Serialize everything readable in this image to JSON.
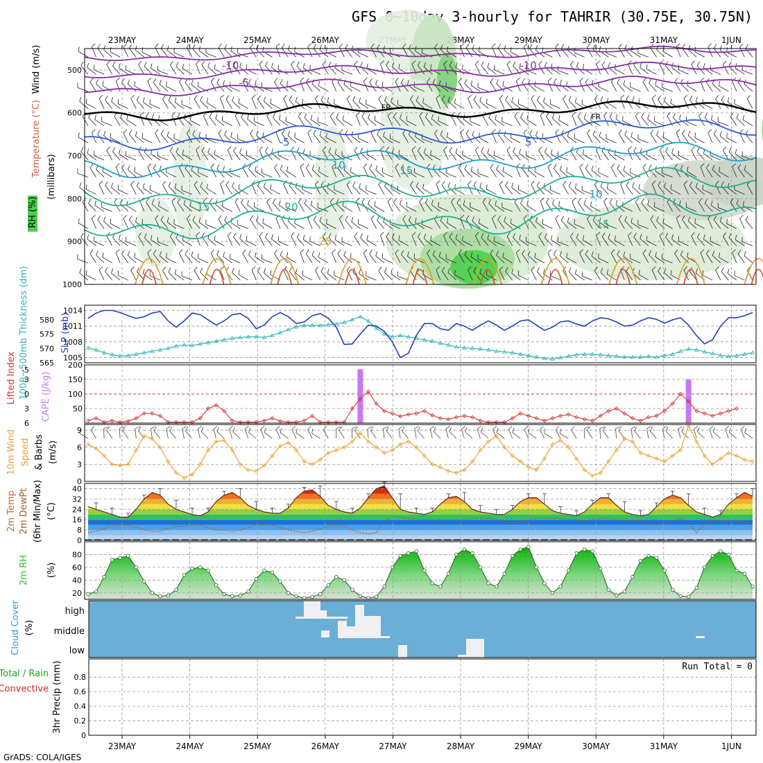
{
  "title": "GFS 0~10day 3-hourly for TAHRIR (30.75E, 30.75N)",
  "footer": "GrADS: COLA/IGES",
  "dates": [
    "23MAY",
    "24MAY",
    "25MAY",
    "26MAY",
    "27MAY",
    "28MAY",
    "29MAY",
    "30MAY",
    "31MAY",
    "1JUN"
  ],
  "colors": {
    "slp": "#1f3fbf",
    "thickness": "#2fb5b5",
    "cape": "#c878f0",
    "lifted": "#d93030",
    "wind": "#f0a030",
    "temp_line": "#6a2a1a",
    "rh": "#30c030",
    "cloud_bg": "#6baed6",
    "purple": "#8a2aa8",
    "blue": "#2a5ad8",
    "cyan": "#1aa0d0",
    "teal": "#20b090",
    "orange": "#e0a030"
  },
  "chart_data": [
    {
      "id": "upper_air",
      "type": "heatmap",
      "title": "RH (%) / Temperature (°C) / Wind (m/s)",
      "ylabel": "(millibars)",
      "ylabels": [
        "Wind (m/s)",
        "Temperature (°C)",
        "RH (%)"
      ],
      "ylim": [
        1000,
        450
      ],
      "yticks": [
        500,
        600,
        700,
        800,
        900,
        1000
      ],
      "contour_labels": [
        {
          "text": "-10",
          "p": 490,
          "day": 1.6,
          "color": "purple"
        },
        {
          "text": "-10",
          "p": 490,
          "day": 6.0,
          "color": "purple"
        },
        {
          "text": "-5",
          "p": 530,
          "day": 1.8,
          "color": "purple"
        },
        {
          "text": "FR",
          "p": 585,
          "day": 3.9,
          "color": "black"
        },
        {
          "text": "FR",
          "p": 607,
          "day": 7.0,
          "color": "black"
        },
        {
          "text": "-5",
          "p": 668,
          "day": 2.4,
          "color": "blue"
        },
        {
          "text": "5",
          "p": 668,
          "day": 6.0,
          "color": "blue"
        },
        {
          "text": "10",
          "p": 722,
          "day": 3.2,
          "color": "cyan"
        },
        {
          "text": "15",
          "p": 735,
          "day": 4.2,
          "color": "teal"
        },
        {
          "text": "10",
          "p": 790,
          "day": 7.0,
          "color": "cyan"
        },
        {
          "text": "15",
          "p": 820,
          "day": 1.2,
          "color": "teal"
        },
        {
          "text": "20",
          "p": 820,
          "day": 2.5,
          "color": "teal"
        },
        {
          "text": "15",
          "p": 860,
          "day": 7.1,
          "color": "teal"
        },
        {
          "text": "25",
          "p": 900,
          "day": 3.0,
          "color": "orange"
        }
      ]
    },
    {
      "id": "slp_thickness",
      "type": "line",
      "ylabels": [
        "1000~500mb Thickness (dm)",
        "SLP (mb)"
      ],
      "left_ylim": [
        565,
        585
      ],
      "left_yticks": [
        565,
        570,
        575,
        580
      ],
      "right_ylim": [
        1004,
        1015
      ],
      "right_yticks": [
        1005,
        1008,
        1011,
        1014
      ],
      "series": [
        {
          "name": "SLP (mb)",
          "axis": "right",
          "values": [
            1012.5,
            1013.5,
            1014.0,
            1014.0,
            1013.6,
            1013.0,
            1012.5,
            1012.8,
            1013.5,
            1013.8,
            1012.0,
            1010.8,
            1012.0,
            1013.5,
            1013.2,
            1012.2,
            1011.2,
            1012.0,
            1013.2,
            1013.4,
            1012.5,
            1010.5,
            1011.2,
            1012.8,
            1013.6,
            1012.8,
            1011.5,
            1011.8,
            1013.0,
            1013.4,
            1012.5,
            1010.8,
            1007.5,
            1007.6,
            1009.5,
            1011.2,
            1011.0,
            1010.0,
            1008.0,
            1005.0,
            1005.8,
            1009.2,
            1011.5,
            1011.5,
            1010.5,
            1010.2,
            1011.5,
            1011.0,
            1010.2,
            1011.2,
            1012.0,
            1011.2,
            1010.2,
            1011.0,
            1012.0,
            1012.2,
            1011.2,
            1010.2,
            1010.8,
            1011.8,
            1012.0,
            1011.4,
            1011.0,
            1012.0,
            1012.6,
            1012.4,
            1011.8,
            1011.0,
            1011.2,
            1012.0,
            1012.6,
            1012.3,
            1011.6,
            1012.2,
            1012.6,
            1011.2,
            1009.2,
            1007.6,
            1008.4,
            1011.0,
            1012.6,
            1012.6,
            1013.0,
            1013.6
          ]
        },
        {
          "name": "1000~500mb Thickness (dm)",
          "axis": "left",
          "values": [
            570.2,
            569.5,
            568.5,
            567.8,
            567.3,
            567.5,
            568.0,
            568.5,
            569.0,
            569.5,
            570.0,
            570.8,
            571.2,
            571.0,
            571.5,
            572.0,
            572.5,
            573.0,
            573.5,
            573.8,
            574.0,
            574.0,
            573.8,
            574.5,
            575.5,
            576.5,
            577.5,
            578.0,
            578.0,
            578.0,
            578.2,
            578.5,
            579.0,
            580.0,
            581.0,
            579.5,
            577.0,
            575.0,
            574.0,
            574.5,
            574.0,
            573.5,
            573.0,
            572.5,
            571.8,
            571.2,
            570.5,
            570.2,
            570.0,
            569.8,
            569.5,
            569.0,
            568.8,
            568.5,
            568.0,
            567.5,
            567.0,
            566.5,
            566.3,
            566.8,
            567.3,
            567.8,
            568.0,
            568.0,
            567.8,
            567.5,
            567.3,
            567.0,
            567.0,
            567.0,
            567.2,
            567.0,
            567.5,
            568.0,
            569.0,
            569.8,
            569.5,
            568.8,
            568.2,
            567.6,
            567.2,
            567.5,
            568.0,
            568.5
          ]
        }
      ]
    },
    {
      "id": "cape_li",
      "type": "line",
      "ylabels": [
        "Lifted Index",
        "CAPE (J/kg)"
      ],
      "left_ylim": [
        6,
        -6
      ],
      "left_yticks": [
        6,
        3,
        0,
        -3,
        -5
      ],
      "right_ylim": [
        0,
        200
      ],
      "right_yticks": [
        50,
        100,
        150,
        200
      ],
      "series": [
        {
          "name": "Lifted Index",
          "axis": "left",
          "values": [
            5.5,
            5.0,
            5.8,
            5.5,
            5.8,
            5.6,
            5.0,
            4.0,
            4.0,
            4.5,
            5.8,
            5.8,
            5.8,
            5.8,
            5.0,
            3.0,
            2.3,
            3.5,
            5.5,
            5.8,
            5.8,
            5.8,
            5.5,
            5.0,
            5.6,
            5.8,
            5.8,
            5.5,
            4.5,
            5.8,
            5.8,
            5.8,
            5.8,
            3.0,
            1.0,
            -0.5,
            2.0,
            3.5,
            4.0,
            4.6,
            4.2,
            4.0,
            3.5,
            4.4,
            5.0,
            5.2,
            4.8,
            4.5,
            4.8,
            5.5,
            5.8,
            5.8,
            5.8,
            5.0,
            4.0,
            4.5,
            5.0,
            5.5,
            5.0,
            4.5,
            4.2,
            4.8,
            5.2,
            5.5,
            4.5,
            3.5,
            3.0,
            4.0,
            5.0,
            5.5,
            4.8,
            4.5,
            3.5,
            2.0,
            0.0,
            1.5,
            3.5,
            4.0,
            4.5,
            4.0,
            3.5,
            3.0
          ]
        },
        {
          "name": "CAPE (J/kg)",
          "axis": "right",
          "type": "bar",
          "values": [
            0,
            0,
            0,
            0,
            0,
            0,
            0,
            0,
            0,
            0,
            0,
            0,
            0,
            0,
            0,
            0,
            0,
            0,
            0,
            0,
            0,
            0,
            0,
            0,
            0,
            0,
            0,
            0,
            0,
            0,
            0,
            0,
            0,
            0,
            185,
            0,
            0,
            0,
            0,
            0,
            0,
            0,
            0,
            0,
            0,
            0,
            0,
            0,
            0,
            0,
            0,
            0,
            0,
            0,
            0,
            0,
            0,
            0,
            0,
            0,
            0,
            0,
            0,
            0,
            0,
            0,
            0,
            0,
            0,
            0,
            0,
            0,
            0,
            0,
            0,
            150,
            0,
            0,
            0,
            0,
            0,
            0,
            0,
            0
          ]
        }
      ]
    },
    {
      "id": "wind10m",
      "type": "line",
      "ylabels": [
        "10m Wind",
        "Speed",
        "& Barbs",
        "(m/s)"
      ],
      "ylim": [
        0,
        10
      ],
      "yticks": [
        0,
        3,
        6,
        9
      ],
      "series": [
        {
          "name": "10m Wind Speed",
          "values": [
            6.5,
            5.8,
            4.5,
            3.0,
            2.8,
            3.0,
            5.5,
            8.0,
            7.5,
            6.0,
            3.5,
            1.5,
            0.6,
            1.2,
            3.0,
            5.5,
            7.0,
            7.2,
            5.5,
            3.0,
            2.0,
            1.8,
            2.8,
            4.5,
            6.2,
            6.8,
            5.5,
            3.5,
            3.0,
            3.8,
            5.0,
            5.5,
            6.0,
            7.0,
            8.5,
            7.0,
            6.0,
            5.0,
            5.5,
            6.5,
            7.0,
            6.0,
            4.5,
            3.0,
            2.5,
            1.8,
            1.5,
            2.0,
            3.5,
            5.5,
            7.0,
            8.0,
            6.0,
            4.5,
            3.5,
            2.5,
            2.0,
            4.0,
            6.5,
            7.2,
            6.0,
            4.0,
            2.0,
            1.0,
            1.5,
            3.5,
            5.5,
            7.5,
            7.0,
            5.0,
            4.5,
            4.0,
            3.5,
            4.5,
            5.5,
            9.8,
            7.0,
            4.5,
            3.0,
            4.0,
            5.0,
            4.5,
            3.8,
            3.5
          ]
        }
      ]
    },
    {
      "id": "temp2m",
      "type": "area",
      "ylabels": [
        "2m Temp",
        "2m DewPt",
        "(6hr Min/Max)",
        "(°C)"
      ],
      "ylim": [
        0,
        44
      ],
      "yticks": [
        0,
        8,
        16,
        24,
        32,
        40
      ],
      "series": [
        {
          "name": "2m Temp",
          "values": [
            26,
            24,
            22,
            20,
            18,
            18,
            24,
            32,
            37,
            35,
            28,
            24,
            22,
            20,
            19,
            22,
            30,
            35,
            37,
            33,
            27,
            24,
            22,
            21,
            21,
            25,
            33,
            38,
            39,
            34,
            27,
            24,
            22,
            21,
            25,
            33,
            40,
            42,
            33,
            24,
            22,
            21,
            20,
            22,
            28,
            33,
            34,
            30,
            24,
            22,
            21,
            20,
            20,
            24,
            30,
            33,
            33,
            28,
            23,
            21,
            20,
            19,
            22,
            28,
            33,
            33,
            27,
            22,
            20,
            19,
            20,
            26,
            32,
            35,
            33,
            27,
            22,
            20,
            18,
            20,
            28,
            33,
            37,
            34
          ]
        },
        {
          "name": "2m DewPt",
          "values": [
            6,
            7,
            9,
            11,
            12,
            12,
            10,
            8,
            7,
            7,
            9,
            11,
            11,
            12,
            12,
            10,
            8,
            8,
            7,
            8,
            10,
            12,
            12,
            12,
            10,
            8,
            7,
            6,
            7,
            9,
            11,
            12,
            11,
            8,
            6,
            5,
            6,
            15,
            18,
            18,
            17,
            17,
            16,
            16,
            16,
            16,
            16,
            16,
            17,
            17,
            17,
            16,
            14,
            13,
            14,
            16,
            17,
            17,
            17,
            17,
            16,
            16,
            15,
            16,
            17,
            17,
            16,
            15,
            15,
            14,
            13,
            12,
            13,
            15,
            17,
            13,
            6,
            13,
            15,
            15,
            15,
            15,
            14,
            13
          ]
        }
      ]
    },
    {
      "id": "rh2m",
      "type": "area",
      "ylabels": [
        "2m RH",
        "(%)"
      ],
      "ylim": [
        10,
        100
      ],
      "yticks": [
        20,
        40,
        60,
        80
      ],
      "series": [
        {
          "name": "2m RH",
          "values": [
            18,
            22,
            45,
            72,
            75,
            78,
            60,
            38,
            20,
            15,
            16,
            25,
            48,
            58,
            60,
            55,
            32,
            18,
            15,
            16,
            22,
            42,
            55,
            52,
            38,
            20,
            15,
            12,
            14,
            18,
            32,
            45,
            40,
            25,
            15,
            12,
            14,
            30,
            60,
            78,
            82,
            85,
            55,
            35,
            30,
            50,
            80,
            88,
            82,
            60,
            35,
            30,
            50,
            78,
            88,
            92,
            60,
            35,
            20,
            30,
            55,
            82,
            88,
            85,
            58,
            25,
            16,
            22,
            45,
            70,
            78,
            75,
            55,
            25,
            15,
            14,
            28,
            60,
            78,
            85,
            80,
            55,
            50,
            30
          ]
        }
      ]
    },
    {
      "id": "cloud",
      "type": "bar",
      "ylabels": [
        "Cloud Cover",
        "(%)"
      ],
      "yticklabels": [
        "high",
        "middle",
        "low"
      ]
    },
    {
      "id": "precip",
      "type": "bar",
      "ylabels": [
        "Total / Rain",
        "Convective",
        "3hr Precip (mm)"
      ],
      "ylim": [
        0,
        1
      ],
      "yticks": [
        0,
        0.2,
        0.4,
        0.6,
        0.8
      ],
      "annotation": "Run Total = 0",
      "series": [
        {
          "name": "3hr Precip",
          "values": []
        }
      ]
    }
  ]
}
